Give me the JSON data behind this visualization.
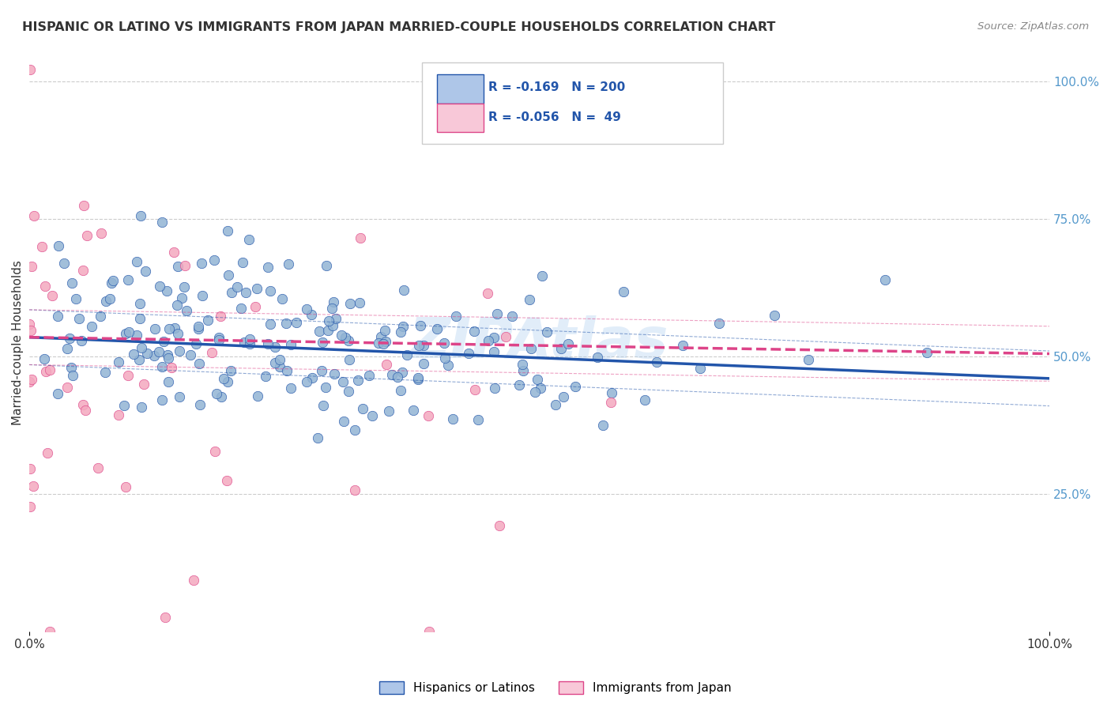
{
  "title": "HISPANIC OR LATINO VS IMMIGRANTS FROM JAPAN MARRIED-COUPLE HOUSEHOLDS CORRELATION CHART",
  "source": "Source: ZipAtlas.com",
  "ylabel": "Married-couple Households",
  "xlabel": "",
  "watermark": "ZIPAtlas",
  "blue_R": -0.169,
  "blue_N": 200,
  "pink_R": -0.056,
  "pink_N": 49,
  "blue_color": "#92b4d4",
  "pink_color": "#f4a8bf",
  "blue_line_color": "#2255aa",
  "pink_line_color": "#dd4488",
  "blue_fill": "#aec6e8",
  "pink_fill": "#f8c8d8",
  "legend_label_blue": "Hispanics or Latinos",
  "legend_label_pink": "Immigrants from Japan",
  "background_color": "#ffffff",
  "grid_color": "#cccccc",
  "title_color": "#333333",
  "right_tick_color": "#5599cc",
  "seed_blue": 42,
  "seed_pink": 99
}
